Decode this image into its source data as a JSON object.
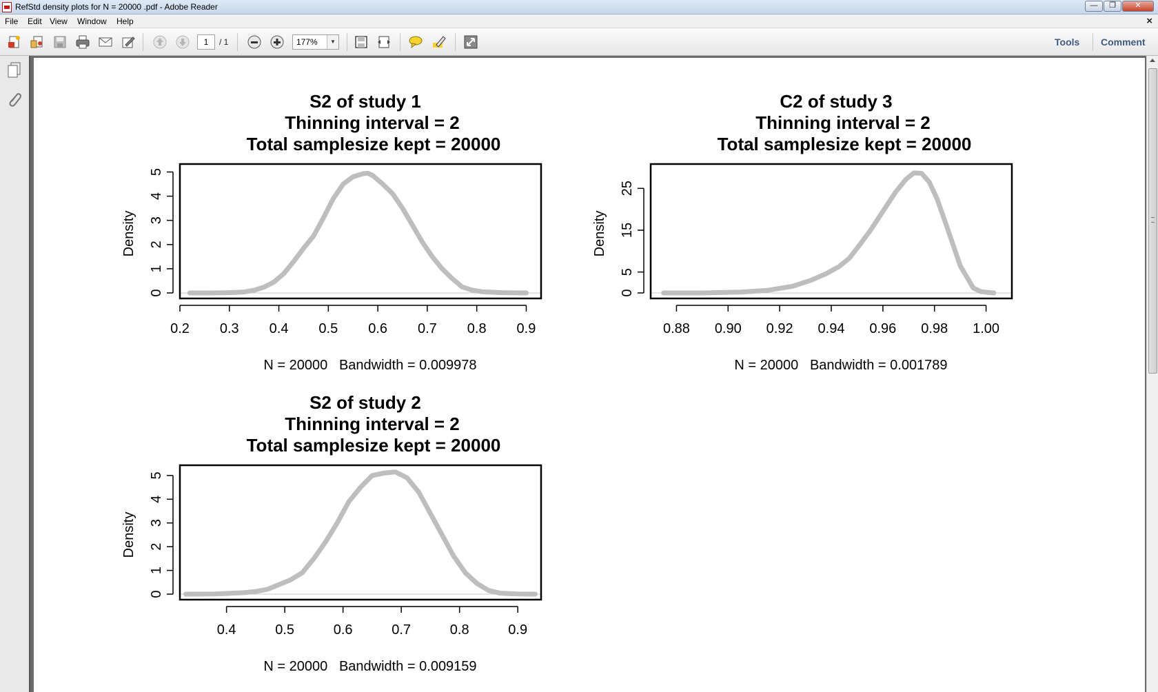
{
  "window": {
    "title": "RefStd density plots for N = 20000 .pdf - Adobe Reader",
    "minimize_glyph": "—",
    "restore_glyph": "❐",
    "close_glyph": "✕"
  },
  "menu": {
    "items": [
      "File",
      "Edit",
      "View",
      "Window",
      "Help"
    ],
    "close_doc_glyph": "×"
  },
  "toolbar": {
    "icons": [
      "create-pdf-icon",
      "open-icon",
      "save-icon",
      "print-icon",
      "email-icon",
      "edit-icon",
      "previous-page-icon",
      "next-page-icon",
      "zoom-out-icon",
      "zoom-in-icon",
      "fit-page-icon",
      "fit-width-icon",
      "comment-icon",
      "highlight-icon",
      "fullscreen-icon"
    ],
    "page_current": "1",
    "page_total": "/ 1",
    "zoom": "177%",
    "tools_label": "Tools",
    "comment_label": "Comment"
  },
  "accent_color": "#3d5a80",
  "plots": [
    {
      "title": [
        "S2  of study  1",
        "Thinning interval =  2",
        "Total samplesize kept =  20000"
      ],
      "ylabel": "Density",
      "xlabel": "N = 20000   Bandwidth = 0.009978"
    },
    {
      "title": [
        "C2  of study  3",
        "Thinning interval =  2",
        "Total samplesize kept =  20000"
      ],
      "ylabel": "Density",
      "xlabel": "N = 20000   Bandwidth = 0.001789"
    },
    {
      "title": [
        "S2  of study  2",
        "Thinning interval =  2",
        "Total samplesize kept =  20000"
      ],
      "ylabel": "Density",
      "xlabel": "N = 20000   Bandwidth = 0.009159"
    }
  ],
  "chart_data": [
    {
      "type": "line",
      "title": "S2  of study  1 / Thinning interval =  2 / Total samplesize kept =  20000",
      "xlabel": "N = 20000   Bandwidth = 0.009978",
      "ylabel": "Density",
      "xticks": [
        0.2,
        0.3,
        0.4,
        0.5,
        0.6,
        0.7,
        0.8,
        0.9
      ],
      "yticks": [
        0,
        1,
        2,
        3,
        4,
        5
      ],
      "xlim": [
        0.2,
        0.93
      ],
      "ylim": [
        0,
        5.1
      ],
      "line_color": "#bebebe",
      "x": [
        0.22,
        0.26,
        0.3,
        0.33,
        0.35,
        0.37,
        0.39,
        0.41,
        0.43,
        0.45,
        0.47,
        0.49,
        0.51,
        0.53,
        0.55,
        0.57,
        0.58,
        0.59,
        0.61,
        0.63,
        0.65,
        0.67,
        0.69,
        0.71,
        0.73,
        0.75,
        0.77,
        0.79,
        0.81,
        0.85,
        0.9
      ],
      "y": [
        0,
        0,
        0.01,
        0.04,
        0.11,
        0.24,
        0.45,
        0.8,
        1.3,
        1.85,
        2.35,
        3.1,
        3.9,
        4.5,
        4.8,
        4.93,
        4.95,
        4.85,
        4.5,
        4.1,
        3.5,
        2.8,
        2.1,
        1.5,
        1.0,
        0.6,
        0.25,
        0.12,
        0.05,
        0.01,
        0
      ]
    },
    {
      "type": "line",
      "title": "C2  of study  3 / Thinning interval =  2 / Total samplesize kept =  20000",
      "xlabel": "N = 20000   Bandwidth = 0.001789",
      "ylabel": "Density",
      "xticks": [
        0.88,
        0.9,
        0.92,
        0.94,
        0.96,
        0.98,
        1.0
      ],
      "yticks": [
        0,
        5,
        15,
        25
      ],
      "xlim": [
        0.87,
        1.01
      ],
      "ylim": [
        0,
        29.5
      ],
      "line_color": "#bebebe",
      "x": [
        0.875,
        0.89,
        0.905,
        0.915,
        0.925,
        0.932,
        0.938,
        0.943,
        0.947,
        0.951,
        0.955,
        0.96,
        0.965,
        0.969,
        0.972,
        0.975,
        0.978,
        0.981,
        0.985,
        0.99,
        0.995,
        0.998,
        1.003
      ],
      "y": [
        0,
        0,
        0.2,
        0.6,
        1.6,
        3.0,
        4.6,
        6.3,
        8.3,
        11.5,
        14.8,
        19.5,
        24.2,
        27.2,
        28.7,
        28.6,
        26.5,
        22.5,
        15.5,
        6.5,
        1.2,
        0.3,
        0
      ]
    },
    {
      "type": "line",
      "title": "S2  of study  2 / Thinning interval =  2 / Total samplesize kept =  20000",
      "xlabel": "N = 20000   Bandwidth = 0.009159",
      "ylabel": "Density",
      "xticks": [
        0.4,
        0.5,
        0.6,
        0.7,
        0.8,
        0.9
      ],
      "yticks": [
        0,
        1,
        2,
        3,
        4,
        5
      ],
      "xlim": [
        0.32,
        0.94
      ],
      "ylim": [
        0,
        5.2
      ],
      "line_color": "#bebebe",
      "x": [
        0.33,
        0.38,
        0.43,
        0.45,
        0.47,
        0.49,
        0.51,
        0.53,
        0.55,
        0.57,
        0.59,
        0.61,
        0.63,
        0.65,
        0.67,
        0.69,
        0.71,
        0.73,
        0.75,
        0.77,
        0.79,
        0.81,
        0.83,
        0.85,
        0.87,
        0.9,
        0.93
      ],
      "y": [
        0,
        0.01,
        0.06,
        0.11,
        0.2,
        0.4,
        0.6,
        0.9,
        1.5,
        2.2,
        3.0,
        3.9,
        4.5,
        5.0,
        5.1,
        5.15,
        4.9,
        4.3,
        3.4,
        2.5,
        1.6,
        0.9,
        0.45,
        0.15,
        0.04,
        0.01,
        0
      ]
    }
  ]
}
